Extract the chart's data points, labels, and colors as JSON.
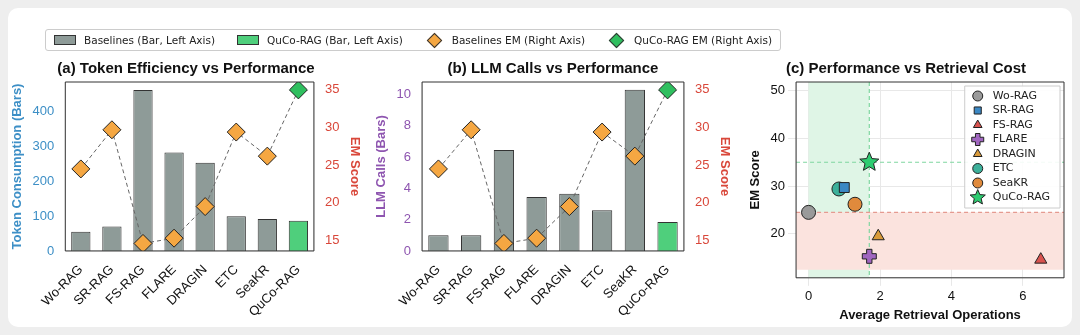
{
  "chart_data": [
    {
      "type": "bar",
      "title": "(a) Token Efficiency vs Performance",
      "ylabel": "Token Consumption (Bars)",
      "y2label": "EM Score",
      "legend": "top",
      "categories": [
        "Wo-RAG",
        "SR-RAG",
        "FS-RAG",
        "FLARE",
        "DRAGIN",
        "ETC",
        "SeaKR",
        "QuCo-RAG"
      ],
      "series": [
        {
          "name": "Baselines (Bar, Left Axis)",
          "color": "#8e9b98",
          "values": [
            55,
            70,
            462,
            283,
            253,
            100,
            92,
            null
          ]
        },
        {
          "name": "QuCo-RAG (Bar, Left Axis)",
          "color": "#4fcf7c",
          "values": [
            null,
            null,
            null,
            null,
            null,
            null,
            null,
            87
          ]
        },
        {
          "type": "line",
          "color": "#666666",
          "line_style": "dashed",
          "marker": "none",
          "axis": "y2",
          "values": [
            24.5,
            29.7,
            14.6,
            15.3,
            19.5,
            29.4,
            26.2,
            35
          ]
        },
        {
          "type": "scatter",
          "name": "Baselines EM (Right Axis)",
          "color": "#f5a742",
          "marker": "diamond",
          "axis": "y2",
          "values": [
            24.5,
            29.7,
            14.6,
            15.3,
            19.5,
            29.4,
            26.2,
            null
          ]
        },
        {
          "type": "scatter",
          "name": "QuCo-RAG EM (Right Axis)",
          "color": "#2fbf5f",
          "marker": "diamond",
          "axis": "y2",
          "values": [
            null,
            null,
            null,
            null,
            null,
            null,
            null,
            35
          ]
        }
      ],
      "ylim": [
        0,
        485
      ],
      "yticks": [
        0,
        100,
        200,
        300,
        400
      ],
      "y2lim": [
        13.6,
        36.05
      ],
      "y2ticks": [
        15,
        20,
        25,
        30,
        35
      ],
      "grid": false
    },
    {
      "type": "bar",
      "title": "(b) LLM Calls vs Performance",
      "ylabel": "LLM Calls (Bars)",
      "y2label": "EM Score",
      "categories": [
        "Wo-RAG",
        "SR-RAG",
        "FS-RAG",
        "FLARE",
        "DRAGIN",
        "ETC",
        "SeaKR",
        "QuCo-RAG"
      ],
      "series": [
        {
          "color": "#8e9b98",
          "values": [
            1,
            1,
            6.45,
            3.45,
            3.65,
            2.6,
            10.3,
            null
          ]
        },
        {
          "color": "#4fcf7c",
          "values": [
            null,
            null,
            null,
            null,
            null,
            null,
            null,
            1.85
          ]
        },
        {
          "type": "line",
          "color": "#666666",
          "line_style": "dashed",
          "marker": "none",
          "axis": "y2",
          "values": [
            24.5,
            29.7,
            14.6,
            15.3,
            19.5,
            29.4,
            26.2,
            35
          ]
        },
        {
          "type": "scatter",
          "color": "#f5a742",
          "marker": "diamond",
          "axis": "y2",
          "values": [
            24.5,
            29.7,
            14.6,
            15.3,
            19.5,
            29.4,
            26.2,
            null
          ]
        },
        {
          "type": "scatter",
          "color": "#2fbf5f",
          "marker": "diamond",
          "axis": "y2",
          "values": [
            null,
            null,
            null,
            null,
            null,
            null,
            null,
            35
          ]
        }
      ],
      "ylim": [
        0,
        10.8
      ],
      "yticks": [
        0,
        2,
        4,
        6,
        8,
        10
      ],
      "y2lim": [
        13.6,
        36.05
      ],
      "y2ticks": [
        15,
        20,
        25,
        30,
        35
      ],
      "grid": false
    },
    {
      "type": "scatter",
      "title": "(c) Performance vs Retrieval Cost",
      "xlabel": "Average Retrieval Operations",
      "ylabel": "EM Score",
      "legend": "top right",
      "series": [
        {
          "name": "Wo-RAG",
          "color": "#9a9a9a",
          "marker": "circle",
          "x": [
            0
          ],
          "values": [
            24.5
          ]
        },
        {
          "name": "SR-RAG",
          "color": "#3b88c4",
          "marker": "square",
          "x": [
            1.0
          ],
          "values": [
            29.7
          ]
        },
        {
          "name": "FS-RAG",
          "color": "#d9534f",
          "marker": "triangle",
          "x": [
            6.5
          ],
          "values": [
            14.6
          ]
        },
        {
          "name": "FLARE",
          "color": "#a066c0",
          "marker": "cross",
          "x": [
            1.7
          ],
          "values": [
            15.3
          ]
        },
        {
          "name": "DRAGIN",
          "color": "#d99a3a",
          "marker": "triangle",
          "x": [
            1.95
          ],
          "values": [
            19.5
          ]
        },
        {
          "name": "ETC",
          "color": "#3cb09a",
          "marker": "circle",
          "x": [
            0.85
          ],
          "values": [
            29.4
          ]
        },
        {
          "name": "SeaKR",
          "color": "#e08a3c",
          "marker": "circle",
          "x": [
            1.3
          ],
          "values": [
            26.2
          ]
        },
        {
          "name": "QuCo-RAG",
          "color": "#2ecc71",
          "marker": "star",
          "x": [
            1.7
          ],
          "values": [
            35
          ]
        }
      ],
      "bands": [
        {
          "axis": "x",
          "from": 0,
          "to": 1.7,
          "color": "#dff5e6"
        },
        {
          "axis": "y",
          "from": 12.5,
          "to": 24.5,
          "color": "#fbe3de"
        }
      ],
      "ref_lines": [
        {
          "axis": "x",
          "value": 1.7,
          "color": "#7fd6a0",
          "line_style": "dashed"
        },
        {
          "axis": "y",
          "value": 35,
          "color": "#7fd6a0",
          "line_style": "dashed"
        },
        {
          "axis": "y",
          "value": 24.5,
          "color": "#e59a90",
          "line_style": "dashed"
        }
      ],
      "xlim": [
        -0.35,
        7.15
      ],
      "xticks": [
        0,
        2,
        4,
        6
      ],
      "ylim": [
        10.8,
        51.8
      ],
      "yticks": [
        20,
        30,
        40,
        50
      ],
      "grid": true
    }
  ]
}
